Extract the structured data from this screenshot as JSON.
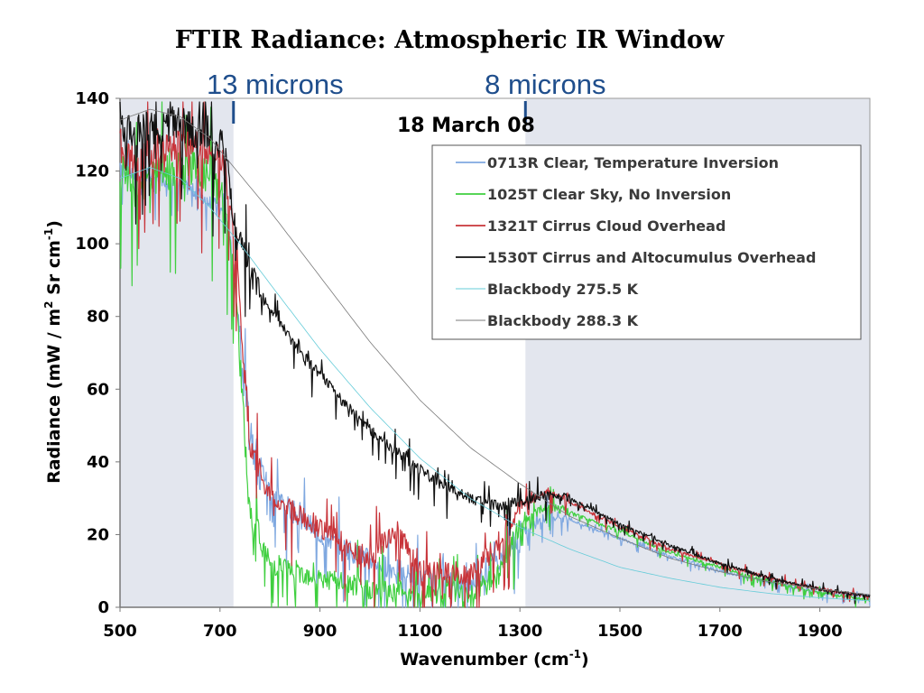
{
  "chart_data": {
    "type": "line",
    "title": "FTIR Radiance: Atmospheric IR Window",
    "date_label": "18 March 08",
    "xlabel": "Wavenumber (cm",
    "xlabel_sup": "-1",
    "xlabel_end": ")",
    "ylabel_parts": [
      "Radiance (mW / m",
      "2",
      " Sr cm",
      "-1",
      ")"
    ],
    "xlim": [
      500,
      2000
    ],
    "ylim": [
      0,
      140
    ],
    "x_ticks": [
      500,
      700,
      900,
      1100,
      1300,
      1500,
      1700,
      1900
    ],
    "y_ticks": [
      0,
      20,
      40,
      60,
      80,
      100,
      120,
      140
    ],
    "shaded_regions": [
      [
        500,
        727
      ],
      [
        1311,
        2000
      ]
    ],
    "markers": [
      {
        "x": 727,
        "label": "13 microns"
      },
      {
        "x": 1311,
        "label": "8 microns"
      }
    ],
    "legend_position": "top-right",
    "series": [
      {
        "name": "0713R Clear, Temperature Inversion",
        "color": "#7fa8e0",
        "x": [
          500,
          530,
          560,
          600,
          640,
          680,
          710,
          730,
          760,
          800,
          900,
          1000,
          1100,
          1200,
          1250,
          1300,
          1330,
          1360,
          1400,
          1500,
          1600,
          1700,
          1800,
          1900,
          2000
        ],
        "y": [
          122,
          118,
          119,
          117,
          115,
          112,
          108,
          90,
          48,
          32,
          20,
          13,
          8,
          6,
          12,
          20,
          23,
          26,
          24,
          19,
          14,
          10,
          7,
          4,
          3
        ]
      },
      {
        "name": "1025T Clear Sky, No Inversion",
        "color": "#3fcf3f",
        "x": [
          500,
          530,
          560,
          600,
          640,
          680,
          710,
          730,
          760,
          800,
          900,
          1000,
          1100,
          1200,
          1250,
          1300,
          1330,
          1360,
          1400,
          1500,
          1600,
          1700,
          1800,
          1900,
          2000
        ],
        "y": [
          120,
          115,
          118,
          120,
          121,
          118,
          112,
          88,
          25,
          12,
          8,
          5,
          4,
          4,
          8,
          22,
          26,
          28,
          26,
          21,
          15,
          11,
          7,
          4,
          2
        ]
      },
      {
        "name": "1321T Cirrus Cloud Overhead",
        "color": "#c8343a",
        "x": [
          500,
          530,
          560,
          600,
          640,
          680,
          710,
          730,
          760,
          800,
          900,
          1000,
          1050,
          1100,
          1200,
          1250,
          1300,
          1330,
          1360,
          1400,
          1500,
          1600,
          1700,
          1800,
          1900,
          2000
        ],
        "y": [
          126,
          122,
          124,
          127,
          129,
          126,
          120,
          100,
          45,
          30,
          22,
          13,
          22,
          10,
          9,
          16,
          28,
          30,
          32,
          29,
          22,
          16,
          12,
          8,
          5,
          3
        ]
      },
      {
        "name": "1530T Cirrus and Altocumulus Overhead",
        "color": "#111111",
        "x": [
          500,
          530,
          560,
          600,
          640,
          680,
          710,
          730,
          760,
          800,
          850,
          900,
          950,
          1000,
          1050,
          1100,
          1150,
          1200,
          1250,
          1300,
          1350,
          1400,
          1500,
          1600,
          1700,
          1800,
          1900,
          2000
        ],
        "y": [
          133,
          131,
          132,
          133,
          132,
          130,
          126,
          104,
          92,
          82,
          72,
          64,
          56,
          49,
          43,
          38,
          33,
          30,
          28,
          29,
          31,
          30,
          23,
          17,
          12,
          8,
          5,
          3
        ]
      },
      {
        "name": "Blackbody 275.5 K",
        "color": "#66ccd9",
        "x": [
          500,
          560,
          620,
          680,
          740,
          800,
          900,
          1000,
          1100,
          1200,
          1300,
          1400,
          1500,
          1600,
          1700,
          1800,
          1900,
          2000
        ],
        "y": [
          118,
          121,
          118,
          110,
          100,
          89,
          71,
          55,
          41,
          30,
          22,
          16,
          11,
          8,
          5.5,
          3.8,
          2.6,
          1.8
        ]
      },
      {
        "name": "Blackbody 288.3 K",
        "color": "#7a7a7a",
        "x": [
          500,
          560,
          620,
          680,
          740,
          800,
          900,
          1000,
          1100,
          1200,
          1300,
          1400,
          1500,
          1600,
          1700,
          1800,
          1900,
          2000
        ],
        "y": [
          134,
          137,
          135,
          129,
          119,
          109,
          91,
          73,
          57,
          44,
          34,
          25,
          19,
          13.5,
          9.8,
          7,
          5,
          3.5
        ]
      }
    ]
  }
}
